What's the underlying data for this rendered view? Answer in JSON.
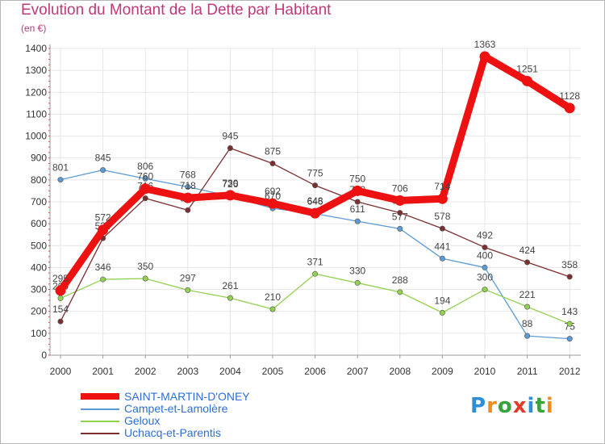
{
  "title": "Evolution du Montant de la Dette par Habitant",
  "subtitle": "(en €)",
  "brand": {
    "letters": [
      "P",
      "r",
      "o",
      "x",
      "i",
      "t",
      "i"
    ],
    "colors": [
      "#2e8fd6",
      "#f08c1e",
      "#37a33a",
      "#e23c28",
      "#2e8fd6",
      "#37a33a",
      "#f08c1e"
    ]
  },
  "chart_data": {
    "type": "line",
    "title": "Evolution du Montant de la Dette par Habitant",
    "ylabel": "(en €)",
    "xlabel": "",
    "ylim": [
      0,
      1400
    ],
    "yticks": [
      "0",
      "100",
      "200",
      "300",
      "400",
      "500",
      "600",
      "700",
      "800",
      "900",
      "1000",
      "1100",
      "1200",
      "1300",
      "1400"
    ],
    "x": [
      "2000",
      "2001",
      "2002",
      "2003",
      "2004",
      "2005",
      "2006",
      "2007",
      "2008",
      "2009",
      "2010",
      "2011",
      "2012"
    ],
    "grid": true,
    "legend_position": "bottom-left",
    "series": [
      {
        "name": "Campet-et-Lamolère",
        "color": "#5b9bd5",
        "values": [
          801,
          845,
          806,
          768,
          726,
          670,
          646,
          611,
          577,
          441,
          400,
          88,
          75
        ],
        "labels": [
          "801",
          "845",
          "806",
          "768",
          "726",
          "670",
          "646",
          "611",
          "577",
          "441",
          "400",
          "88",
          "75"
        ]
      },
      {
        "name": "Geloux",
        "color": "#92d050",
        "values": [
          260,
          346,
          350,
          297,
          261,
          210,
          371,
          330,
          288,
          194,
          300,
          221,
          143
        ],
        "labels": [
          "260",
          "346",
          "350",
          "297",
          "261",
          "210",
          "371",
          "330",
          "288",
          "194",
          "300",
          "221",
          "143"
        ]
      },
      {
        "name": "Uchacq-et-Parentis",
        "color": "#7b2f2f",
        "values": [
          154,
          534,
          716,
          662,
          945,
          875,
          775,
          700,
          650,
          578,
          492,
          424,
          358
        ],
        "labels": [
          "154",
          "534",
          "716",
          "662",
          "945",
          "875",
          "775",
          "700",
          "650",
          "578",
          "492",
          "424",
          "358"
        ]
      },
      {
        "name": "SAINT-MARTIN-D'ONEY",
        "color": "#ee1111",
        "values": [
          295,
          572,
          760,
          718,
          730,
          692,
          648,
          750,
          706,
          714,
          1363,
          1251,
          1128
        ],
        "labels": [
          "295",
          "572",
          "760",
          "718",
          "730",
          "692",
          "648",
          "750",
          "706",
          "714",
          "1363",
          "1251",
          "1128"
        ]
      }
    ]
  },
  "legend": [
    {
      "label": "SAINT-MARTIN-D'ONEY",
      "color": "#ee1111",
      "weight": "thick"
    },
    {
      "label": "Campet-et-Lamolère",
      "color": "#5b9bd5",
      "weight": "thin"
    },
    {
      "label": "Geloux",
      "color": "#92d050",
      "weight": "thin"
    },
    {
      "label": "Uchacq-et-Parentis",
      "color": "#7b2f2f",
      "weight": "thin"
    }
  ]
}
